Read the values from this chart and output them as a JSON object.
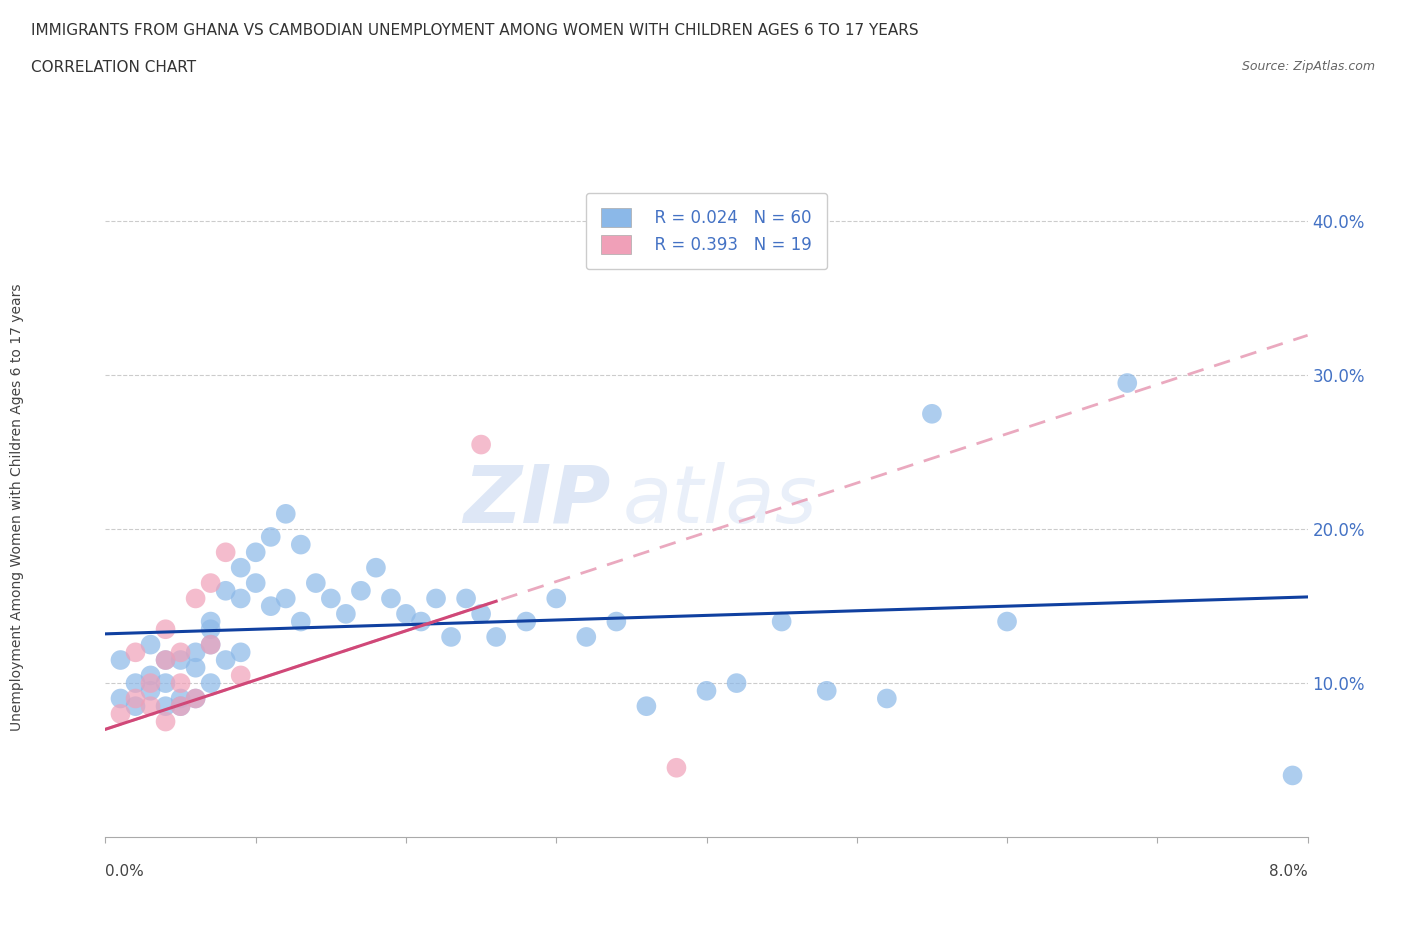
{
  "title": "IMMIGRANTS FROM GHANA VS CAMBODIAN UNEMPLOYMENT AMONG WOMEN WITH CHILDREN AGES 6 TO 17 YEARS",
  "subtitle": "CORRELATION CHART",
  "source": "Source: ZipAtlas.com",
  "xlabel_bottom_left": "0.0%",
  "xlabel_bottom_right": "8.0%",
  "ylabel": "Unemployment Among Women with Children Ages 6 to 17 years",
  "ytick_labels": [
    "10.0%",
    "20.0%",
    "30.0%",
    "40.0%"
  ],
  "ytick_values": [
    0.1,
    0.2,
    0.3,
    0.4
  ],
  "ghana_color": "#8BB8E8",
  "cambodian_color": "#F0A0B8",
  "ghana_line_color": "#1040A0",
  "cambodian_line_color": "#D04878",
  "cambodian_dash_color": "#E8A0B8",
  "watermark_top": "ZIP",
  "watermark_bottom": "atlas",
  "ghana_scatter_x": [
    0.001,
    0.001,
    0.002,
    0.002,
    0.003,
    0.003,
    0.003,
    0.004,
    0.004,
    0.004,
    0.005,
    0.005,
    0.005,
    0.006,
    0.006,
    0.006,
    0.007,
    0.007,
    0.007,
    0.007,
    0.008,
    0.008,
    0.009,
    0.009,
    0.009,
    0.01,
    0.01,
    0.011,
    0.011,
    0.012,
    0.012,
    0.013,
    0.013,
    0.014,
    0.015,
    0.016,
    0.017,
    0.018,
    0.019,
    0.02,
    0.021,
    0.022,
    0.023,
    0.024,
    0.025,
    0.026,
    0.028,
    0.03,
    0.032,
    0.034,
    0.036,
    0.04,
    0.042,
    0.045,
    0.048,
    0.052,
    0.055,
    0.06,
    0.068,
    0.079
  ],
  "ghana_scatter_y": [
    0.09,
    0.115,
    0.085,
    0.1,
    0.105,
    0.095,
    0.125,
    0.1,
    0.115,
    0.085,
    0.09,
    0.115,
    0.085,
    0.12,
    0.09,
    0.11,
    0.125,
    0.14,
    0.1,
    0.135,
    0.16,
    0.115,
    0.175,
    0.155,
    0.12,
    0.185,
    0.165,
    0.15,
    0.195,
    0.21,
    0.155,
    0.19,
    0.14,
    0.165,
    0.155,
    0.145,
    0.16,
    0.175,
    0.155,
    0.145,
    0.14,
    0.155,
    0.13,
    0.155,
    0.145,
    0.13,
    0.14,
    0.155,
    0.13,
    0.14,
    0.085,
    0.095,
    0.1,
    0.14,
    0.095,
    0.09,
    0.275,
    0.14,
    0.295,
    0.04
  ],
  "cambodian_scatter_x": [
    0.001,
    0.002,
    0.002,
    0.003,
    0.003,
    0.004,
    0.004,
    0.004,
    0.005,
    0.005,
    0.005,
    0.006,
    0.006,
    0.007,
    0.007,
    0.008,
    0.009,
    0.025,
    0.038
  ],
  "cambodian_scatter_y": [
    0.08,
    0.09,
    0.12,
    0.1,
    0.085,
    0.075,
    0.115,
    0.135,
    0.1,
    0.12,
    0.085,
    0.155,
    0.09,
    0.165,
    0.125,
    0.185,
    0.105,
    0.255,
    0.045
  ],
  "xmin": 0.0,
  "xmax": 0.08,
  "ymin": 0.0,
  "ymax": 0.42,
  "legend_r_ghana": "R = 0.024",
  "legend_n_ghana": "N = 60",
  "legend_r_cambodian": "R = 0.393",
  "legend_n_cambodian": "N = 19"
}
